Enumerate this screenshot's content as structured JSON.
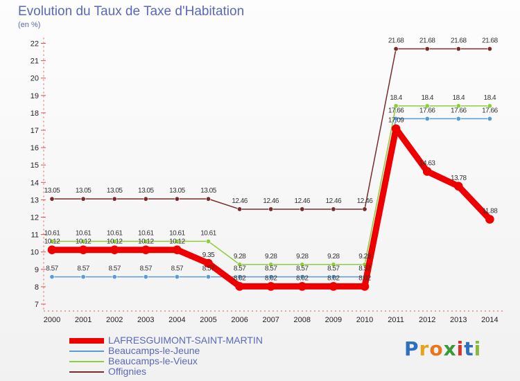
{
  "header": {
    "title": "Evolution du Taux de Taxe d'Habitation",
    "unit": "(en %)"
  },
  "logo": {
    "text": "Proxiti",
    "colors": [
      "#2e6fc1",
      "#e8a21c",
      "#e8771b",
      "#3a9a3a",
      "#d9342b",
      "#2e6fc1",
      "#8ab83a"
    ]
  },
  "chart_data": {
    "type": "line",
    "title": "Evolution du Taux de Taxe d'Habitation",
    "ylabel": "(en %)",
    "xlabel": "",
    "x": [
      "2000",
      "2001",
      "2002",
      "2003",
      "2004",
      "2005",
      "2006",
      "2007",
      "2008",
      "2009",
      "2010",
      "2011",
      "2012",
      "2013",
      "2014"
    ],
    "ylim": [
      7,
      22
    ],
    "yticks": [
      "7",
      "8",
      "9",
      "10",
      "11",
      "12",
      "13",
      "14",
      "15",
      "16",
      "17",
      "18",
      "19",
      "20",
      "21",
      "22"
    ],
    "grid": false,
    "legend_position": "bottom-left",
    "series": [
      {
        "name": "LAFRESGUIMONT-SAINT-MARTIN",
        "color": "#ee0000",
        "width": 9,
        "values": [
          10.12,
          10.12,
          10.12,
          10.12,
          10.12,
          9.35,
          8.02,
          8.02,
          8.02,
          8.02,
          8.02,
          17.09,
          14.63,
          13.78,
          11.88
        ],
        "labels": [
          "10.12",
          "10.12",
          "10.12",
          "10.12",
          "10.12",
          "9.35",
          "8.02",
          "8.02",
          "8.02",
          "8.02",
          "8.02",
          "17.09",
          "14.63",
          "13.78",
          "11.88"
        ]
      },
      {
        "name": "Beaucamps-le-Jeune",
        "color": "#5a9bd5",
        "width": 1.5,
        "values": [
          8.57,
          8.57,
          8.57,
          8.57,
          8.57,
          8.57,
          8.57,
          8.57,
          8.57,
          8.57,
          8.57,
          17.66,
          17.66,
          17.66,
          17.66
        ],
        "labels": [
          "8.57",
          "8.57",
          "8.57",
          "8.57",
          "8.57",
          "8.57",
          "8.57",
          "8.57",
          "8.57",
          "8.57",
          "8.57",
          "17.66",
          "17.66",
          "17.66",
          "17.66"
        ]
      },
      {
        "name": "Beaucamps-le-Vieux",
        "color": "#8ccf3c",
        "width": 1.5,
        "values": [
          10.61,
          10.61,
          10.61,
          10.61,
          10.61,
          10.61,
          9.28,
          9.28,
          9.28,
          9.28,
          9.28,
          18.4,
          18.4,
          18.4,
          18.4
        ],
        "labels": [
          "10.61",
          "10.61",
          "10.61",
          "10.61",
          "10.61",
          "10.61",
          "9.28",
          "9.28",
          "9.28",
          "9.28",
          "9.28",
          "18.4",
          "18.4",
          "18.4",
          "18.4"
        ]
      },
      {
        "name": "Offignies",
        "color": "#7a2a2a",
        "width": 1.5,
        "values": [
          13.05,
          13.05,
          13.05,
          13.05,
          13.05,
          13.05,
          12.46,
          12.46,
          12.46,
          12.46,
          12.46,
          21.68,
          21.68,
          21.68,
          21.68
        ],
        "labels": [
          "13.05",
          "13.05",
          "13.05",
          "13.05",
          "13.05",
          "13.05",
          "12.46",
          "12.46",
          "12.46",
          "12.46",
          "12.46",
          "21.68",
          "21.68",
          "21.68",
          "21.68"
        ]
      }
    ]
  }
}
